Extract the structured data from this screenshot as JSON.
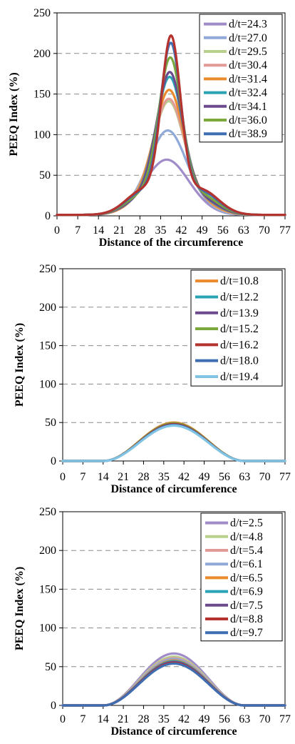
{
  "chart_data": [
    {
      "type": "line",
      "xlabel": "Distance of the circumference",
      "ylabel": "PEEQ Index (%)",
      "xlim": [
        0,
        77
      ],
      "ylim": [
        0,
        250
      ],
      "x_ticks": [
        "0",
        "7",
        "14",
        "21",
        "28",
        "35",
        "42",
        "49",
        "56",
        "63",
        "70",
        "77"
      ],
      "y_ticks": [
        "0",
        "50",
        "100",
        "150",
        "200",
        "250"
      ],
      "grid": "horizontal dashed",
      "legend_position": "top-right",
      "shape": "peaked",
      "series": [
        {
          "name": "d/t=24.3",
          "color": "#a08cc8",
          "peak": 68
        },
        {
          "name": "d/t=27.0",
          "color": "#8fa9d8",
          "peak": 104
        },
        {
          "name": "d/t=29.5",
          "color": "#b9d08c",
          "peak": 140
        },
        {
          "name": "d/t=30.4",
          "color": "#e29a96",
          "peak": 143
        },
        {
          "name": "d/t=31.4",
          "color": "#ec8a2e",
          "peak": 154
        },
        {
          "name": "d/t=32.4",
          "color": "#2aa3b5",
          "peak": 170
        },
        {
          "name": "d/t=34.1",
          "color": "#6b4a8e",
          "peak": 176
        },
        {
          "name": "d/t=36.0",
          "color": "#7aa83c",
          "peak": 194
        },
        {
          "name": "d/t=38.9",
          "color": "#3e6db2",
          "peak": 212
        },
        {
          "color": "#b5332f",
          "peak": 221
        }
      ]
    },
    {
      "type": "line",
      "xlabel": "Distance of circumference",
      "ylabel": "PEEQ Index (%)",
      "xlim": [
        0,
        77
      ],
      "ylim": [
        0,
        250
      ],
      "x_ticks": [
        "0",
        "7",
        "14",
        "21",
        "28",
        "35",
        "42",
        "49",
        "56",
        "63",
        "70",
        "77"
      ],
      "y_ticks": [
        "0",
        "50",
        "100",
        "150",
        "200",
        "250"
      ],
      "grid": "horizontal dashed",
      "legend_position": "top-right",
      "shape": "bell",
      "series": [
        {
          "name": "d/t=10.8",
          "color": "#ec8a2e",
          "peak": 50
        },
        {
          "name": "d/t=12.2",
          "color": "#2aa3b5",
          "peak": 49
        },
        {
          "name": "d/t=13.9",
          "color": "#6b4a8e",
          "peak": 48
        },
        {
          "name": "d/t=15.2",
          "color": "#7aa83c",
          "peak": 49
        },
        {
          "name": "d/t=16.2",
          "color": "#b5332f",
          "peak": 48
        },
        {
          "name": "d/t=18.0",
          "color": "#3e6db2",
          "peak": 47
        },
        {
          "name": "d/t=19.4",
          "color": "#7fc4e4",
          "peak": 46
        }
      ]
    },
    {
      "type": "line",
      "xlabel": "Distance of circumference",
      "ylabel": "PEEQ Index (%)",
      "xlim": [
        0,
        77
      ],
      "ylim": [
        0,
        250
      ],
      "x_ticks": [
        "0",
        "7",
        "14",
        "21",
        "28",
        "35",
        "42",
        "49",
        "56",
        "63",
        "70",
        "77"
      ],
      "y_ticks": [
        "0",
        "50",
        "100",
        "150",
        "200",
        "250"
      ],
      "grid": "horizontal dashed",
      "legend_position": "top-right",
      "shape": "bell",
      "series": [
        {
          "name": "d/t=2.5",
          "color": "#a08cc8",
          "peak": 67
        },
        {
          "name": "d/t=4.8",
          "color": "#b9d08c",
          "peak": 63
        },
        {
          "name": "d/t=5.4",
          "color": "#e29a96",
          "peak": 61
        },
        {
          "name": "d/t=6.1",
          "color": "#8fa9d8",
          "peak": 60
        },
        {
          "name": "d/t=6.5",
          "color": "#ec8a2e",
          "peak": 58
        },
        {
          "name": "d/t=6.9",
          "color": "#2aa3b5",
          "peak": 57
        },
        {
          "name": "d/t=7.5",
          "color": "#6b4a8e",
          "peak": 56
        },
        {
          "name": "d/t=8.8",
          "color": "#b5332f",
          "peak": 55
        },
        {
          "name": "d/t=9.7",
          "color": "#3e6db2",
          "peak": 54
        }
      ]
    }
  ]
}
